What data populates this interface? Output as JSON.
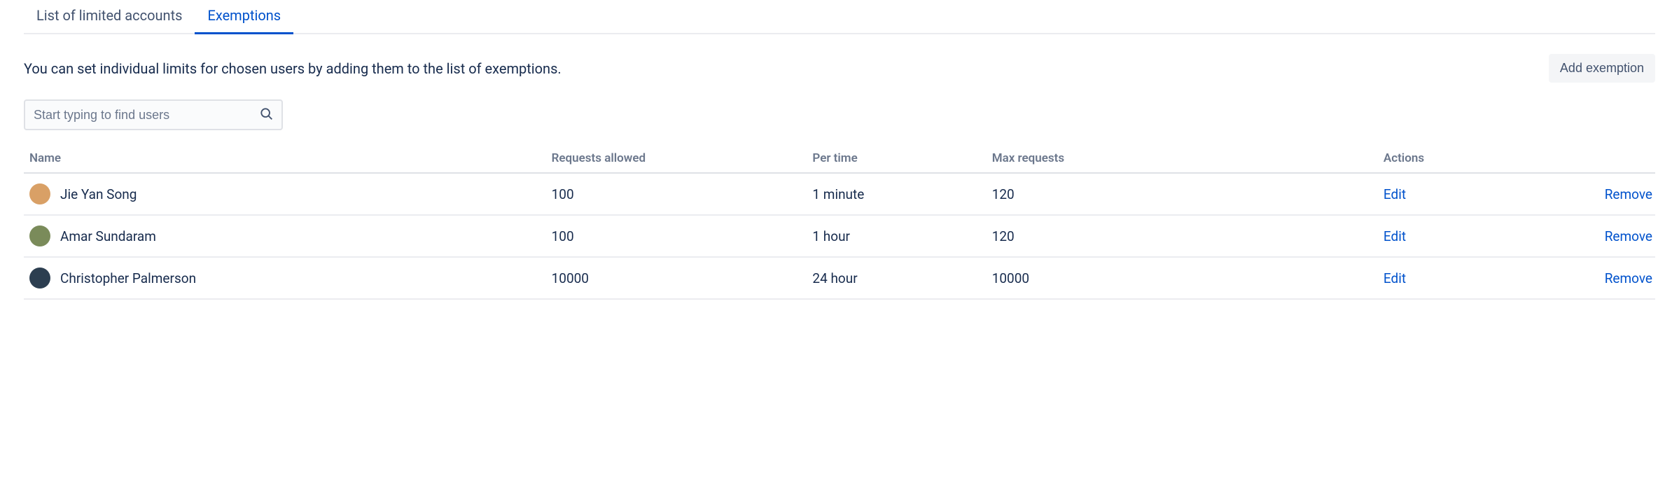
{
  "colors": {
    "accent": "#0052cc",
    "text": "#172b4d",
    "muted": "#6b778c",
    "border": "#ebecf0",
    "button_bg": "#f4f5f7"
  },
  "tabs": [
    {
      "label": "List of limited accounts",
      "active": false
    },
    {
      "label": "Exemptions",
      "active": true
    }
  ],
  "description": "You can set individual limits for chosen users by adding them to the list of exemptions.",
  "add_button_label": "Add exemption",
  "search": {
    "placeholder": "Start typing to find users",
    "value": ""
  },
  "table": {
    "columns": [
      "Name",
      "Requests allowed",
      "Per time",
      "Max requests",
      "Actions"
    ],
    "action_labels": {
      "edit": "Edit",
      "remove": "Remove"
    },
    "rows": [
      {
        "name": "Jie Yan Song",
        "requests_allowed": "100",
        "per_time": "1 minute",
        "max_requests": "120",
        "avatar_bg": "#d9a066"
      },
      {
        "name": "Amar Sundaram",
        "requests_allowed": "100",
        "per_time": "1 hour",
        "max_requests": "120",
        "avatar_bg": "#7a8b5a"
      },
      {
        "name": "Christopher Palmerson",
        "requests_allowed": "10000",
        "per_time": "24 hour",
        "max_requests": "10000",
        "avatar_bg": "#2c3e50"
      }
    ]
  }
}
